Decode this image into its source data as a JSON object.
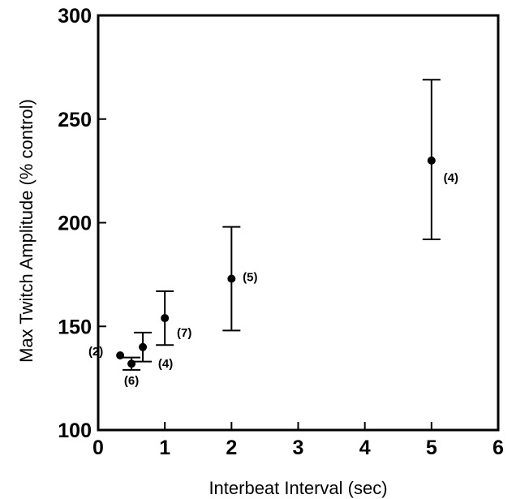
{
  "chart_data": {
    "type": "scatter",
    "title": "",
    "xlabel": "Interbeat Interval (sec)",
    "ylabel": "Max Twitch Amplitude (% control)",
    "xlim": [
      0,
      6
    ],
    "ylim": [
      100,
      300
    ],
    "xticks": [
      0,
      1,
      2,
      3,
      4,
      5,
      6
    ],
    "yticks": [
      100,
      150,
      200,
      250,
      300
    ],
    "grid": false,
    "colors": {
      "axis": "#000000",
      "marker": "#000000"
    },
    "points": [
      {
        "x": 0.33,
        "y": 136,
        "err_low": null,
        "err_high": null,
        "label": "(2)"
      },
      {
        "x": 0.5,
        "y": 132,
        "err_low": 129,
        "err_high": 135,
        "label": "(6)"
      },
      {
        "x": 0.67,
        "y": 140,
        "err_low": 133,
        "err_high": 147,
        "label": "(4)"
      },
      {
        "x": 1,
        "y": 154,
        "err_low": 141,
        "err_high": 167,
        "label": "(7)"
      },
      {
        "x": 2,
        "y": 173,
        "err_low": 148,
        "err_high": 198,
        "label": "(5)"
      },
      {
        "x": 5,
        "y": 230,
        "err_low": 192,
        "err_high": 269,
        "label": "(4)"
      }
    ]
  }
}
